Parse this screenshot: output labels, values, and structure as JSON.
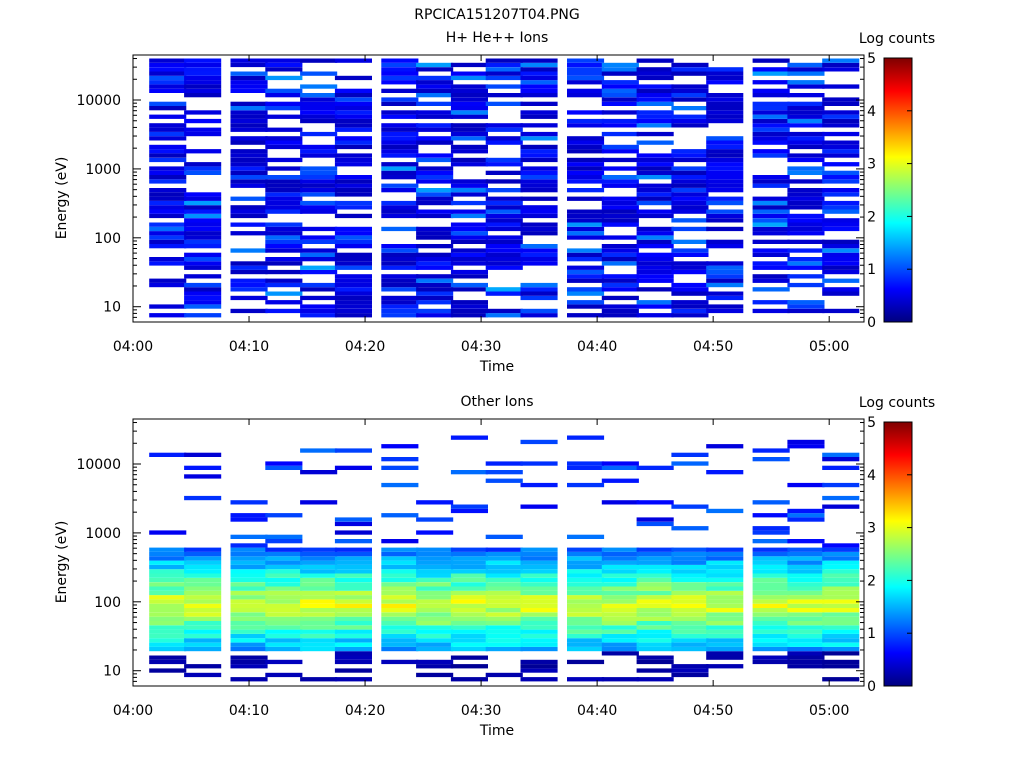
{
  "page_title": "RPCICA151207T04.PNG",
  "chart_data": [
    {
      "type": "heatmap",
      "title": "H+ He++ Ions",
      "xlabel": "Time",
      "ylabel": "Energy (eV)",
      "x_scale": "time",
      "x_range": [
        "04:00",
        "05:03"
      ],
      "x_ticks": [
        "04:00",
        "04:10",
        "04:20",
        "04:30",
        "04:40",
        "04:50",
        "05:00"
      ],
      "y_scale": "log",
      "y_range": [
        6,
        45000
      ],
      "y_ticks": [
        10,
        100,
        1000,
        10000
      ],
      "colorbar": {
        "label": "Log counts",
        "min": 0,
        "max": 5,
        "ticks": [
          0,
          1,
          2,
          3,
          4,
          5
        ],
        "colormap": "rainbow"
      },
      "time_bins": [
        "04:03",
        "04:06",
        "04:10",
        "04:13",
        "04:16",
        "04:19",
        "04:23",
        "04:26",
        "04:29",
        "04:32",
        "04:35",
        "04:39",
        "04:42",
        "04:45",
        "04:48",
        "04:51",
        "04:55",
        "04:58",
        "05:01"
      ],
      "band": {
        "low_ev": 7,
        "high_ev": 40000
      },
      "typical_log_counts": 0.3,
      "peak_log_counts": 1.5,
      "fill_fraction": 0.7
    },
    {
      "type": "heatmap",
      "title": "Other Ions",
      "xlabel": "Time",
      "ylabel": "Energy (eV)",
      "x_scale": "time",
      "x_range": [
        "04:00",
        "05:03"
      ],
      "x_ticks": [
        "04:00",
        "04:10",
        "04:20",
        "04:30",
        "04:40",
        "04:50",
        "05:00"
      ],
      "y_scale": "log",
      "y_range": [
        6,
        45000
      ],
      "y_ticks": [
        10,
        100,
        1000,
        10000
      ],
      "colorbar": {
        "label": "Log counts",
        "min": 0,
        "max": 5,
        "ticks": [
          0,
          1,
          2,
          3,
          4,
          5
        ],
        "colormap": "rainbow"
      },
      "time_bins": [
        "04:03",
        "04:06",
        "04:10",
        "04:13",
        "04:16",
        "04:19",
        "04:23",
        "04:26",
        "04:29",
        "04:32",
        "04:35",
        "04:39",
        "04:42",
        "04:45",
        "04:48",
        "04:51",
        "04:55",
        "04:58",
        "05:01"
      ],
      "core_band": {
        "low_ev": 20,
        "high_ev": 600,
        "peak_ev": 90,
        "peak_log_counts": 3.0
      },
      "high_energy_sparse_band": {
        "low_ev": 600,
        "high_ev": 25000,
        "log_counts": 0.4
      },
      "low_energy_sparse_band": {
        "low_ev": 7,
        "high_ev": 20,
        "log_counts": 0.1
      }
    }
  ]
}
